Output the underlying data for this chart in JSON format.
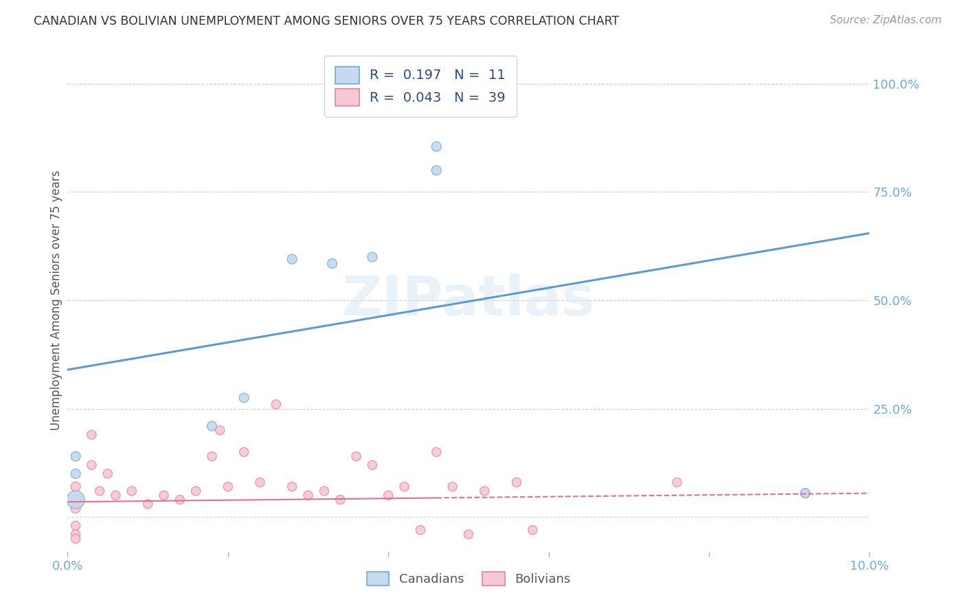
{
  "title": "CANADIAN VS BOLIVIAN UNEMPLOYMENT AMONG SENIORS OVER 75 YEARS CORRELATION CHART",
  "source": "Source: ZipAtlas.com",
  "ylabel": "Unemployment Among Seniors over 75 years",
  "ytick_labels": [
    "100.0%",
    "75.0%",
    "50.0%",
    "25.0%"
  ],
  "ytick_values": [
    1.0,
    0.75,
    0.5,
    0.25
  ],
  "xlim": [
    0.0,
    0.1
  ],
  "ylim": [
    -0.08,
    1.08
  ],
  "background_color": "#ffffff",
  "watermark": "ZIPatlas",
  "canadians": {
    "label": "Canadians",
    "color": "#c5daee",
    "edge_color": "#6aabdc",
    "R": 0.197,
    "N": 11,
    "x": [
      0.001,
      0.001,
      0.001,
      0.018,
      0.022,
      0.028,
      0.033,
      0.038,
      0.046,
      0.046,
      0.092
    ],
    "y": [
      0.04,
      0.1,
      0.14,
      0.21,
      0.275,
      0.595,
      0.585,
      0.6,
      0.8,
      0.855,
      0.055
    ],
    "sizes": [
      350,
      100,
      100,
      100,
      100,
      100,
      100,
      100,
      100,
      100,
      100
    ],
    "line_x": [
      0.0,
      0.1
    ],
    "line_y": [
      0.34,
      0.655
    ]
  },
  "bolivians": {
    "label": "Bolivians",
    "color": "#f8c8d4",
    "edge_color": "#e8809a",
    "R": 0.043,
    "N": 39,
    "x": [
      0.001,
      0.001,
      0.001,
      0.001,
      0.001,
      0.001,
      0.003,
      0.003,
      0.004,
      0.005,
      0.006,
      0.008,
      0.01,
      0.012,
      0.014,
      0.016,
      0.018,
      0.019,
      0.02,
      0.022,
      0.024,
      0.026,
      0.028,
      0.03,
      0.032,
      0.034,
      0.036,
      0.038,
      0.04,
      0.042,
      0.044,
      0.046,
      0.048,
      0.05,
      0.052,
      0.056,
      0.058,
      0.076,
      0.092
    ],
    "y": [
      0.04,
      0.02,
      -0.02,
      -0.04,
      -0.05,
      0.07,
      0.12,
      0.19,
      0.06,
      0.1,
      0.05,
      0.06,
      0.03,
      0.05,
      0.04,
      0.06,
      0.14,
      0.2,
      0.07,
      0.15,
      0.08,
      0.26,
      0.07,
      0.05,
      0.06,
      0.04,
      0.14,
      0.12,
      0.05,
      0.07,
      -0.03,
      0.15,
      0.07,
      -0.04,
      0.06,
      0.08,
      -0.03,
      0.08,
      0.055
    ],
    "sizes": [
      120,
      100,
      90,
      90,
      90,
      100,
      90,
      90,
      90,
      90,
      90,
      90,
      90,
      90,
      90,
      90,
      90,
      90,
      90,
      90,
      90,
      90,
      90,
      90,
      90,
      90,
      90,
      90,
      90,
      90,
      90,
      90,
      90,
      90,
      90,
      90,
      90,
      90,
      90
    ],
    "line_x": [
      0.0,
      0.1
    ],
    "line_y": [
      0.035,
      0.055
    ]
  },
  "legend": {
    "R_canadian": "0.197",
    "N_canadian": "11",
    "R_bolivian": "0.043",
    "N_bolivian": "39",
    "color_canadian": "#c5daee",
    "color_bolivian": "#f8c8d4",
    "edge_canadian": "#6aabdc",
    "edge_bolivian": "#e8809a"
  },
  "title_color": "#333333",
  "axis_label_color": "#6aabdc",
  "grid_color": "#cccccc",
  "regression_color_canadian": "#5b9bd5",
  "regression_color_bolivian": "#e07090"
}
